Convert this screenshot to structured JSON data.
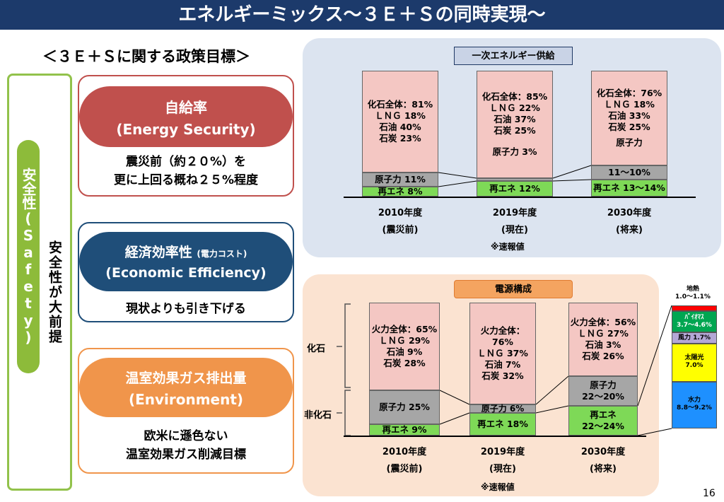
{
  "title": "エネルギーミックス～３Ｅ＋Ｓの同時実現～",
  "policy_heading": "＜３Ｅ＋Ｓに関する政策目標＞",
  "safety": {
    "label": "安全性(Safety)",
    "premise": "安全性が大前提"
  },
  "policies": [
    {
      "title": "自給率",
      "subtitle": "(Energy Security)",
      "desc1": "震災前（約２０%）を",
      "desc2": "更に上回る概ね２５%程度"
    },
    {
      "title": "経済効率性",
      "title_small": "(電力コスト)",
      "subtitle": "(Economic Efficiency)",
      "desc1": "現状よりも引き下げる"
    },
    {
      "title": "温室効果ガス排出量",
      "subtitle": "(Environment)",
      "desc1": "欧米に遜色ない",
      "desc2": "温室効果ガス削減目標"
    }
  ],
  "primary": {
    "title": "一次エネルギー供給",
    "bars": [
      {
        "fossil": [
          "化石全体：81%",
          "ＬＮＧ 18%",
          "石油 40%",
          "石炭 23%"
        ],
        "nuclear": "原子力 11%",
        "renew": "再エネ 8%",
        "year": "2010年度",
        "label": "(震災前)"
      },
      {
        "fossil": [
          "化石全体：85%",
          "ＬＮＧ 22%",
          "石油 37%",
          "石炭 25%"
        ],
        "nuclear": "原子力 3%",
        "renew": "再エネ 12%",
        "year": "2019年度",
        "label": "(現在)"
      },
      {
        "fossil": [
          "化石全体：76%",
          "ＬＮＧ 18%",
          "石油 33%",
          "石炭 25%"
        ],
        "nuclear_top": "原子力",
        "nuclear": "11～10%",
        "renew": "再エネ 13～14%",
        "year": "2030年度",
        "label": "(将来)"
      }
    ],
    "note": "※速報値"
  },
  "power": {
    "title": "電源構成",
    "fossil_label": "化石",
    "nonfossil_label": "非化石",
    "bars": [
      {
        "fossil": [
          "火力全体：65%",
          "ＬＮＧ 29%",
          "石油 9%",
          "石炭 28%"
        ],
        "nuclear": "原子力 25%",
        "renew": "再エネ 9%",
        "year": "2010年度",
        "label": "(震災前)"
      },
      {
        "fossil": [
          "火力全体：76%",
          "ＬＮＧ 37%",
          "石油 7%",
          "石炭 32%"
        ],
        "nuclear": "原子力 6%",
        "renew": "再エネ 18%",
        "year": "2019年度",
        "label": "(現在)"
      },
      {
        "fossil": [
          "火力全体：56%",
          "ＬＮＧ 27%",
          "石油 3%",
          "石炭 26%"
        ],
        "nuclear": "原子力",
        "nuclear2": "22～20%",
        "renew": "再エネ",
        "renew2": "22～24%",
        "year": "2030年度",
        "label": "(将来)"
      }
    ],
    "breakdown": [
      {
        "name": "地熱",
        "value": "1.0～1.1%",
        "color": "#ff0000"
      },
      {
        "name": "ﾊﾞｲｵﾏｽ",
        "value": "3.7～4.6%",
        "color": "#00a651"
      },
      {
        "name": "風力",
        "value": "1.7%",
        "color": "#b4a7d6"
      },
      {
        "name": "太陽光",
        "value": "7.0%",
        "color": "#ffff00"
      },
      {
        "name": "水力",
        "value": "8.8～9.2%",
        "color": "#1e90ff"
      }
    ],
    "note": "※速報値"
  },
  "page_number": "16"
}
